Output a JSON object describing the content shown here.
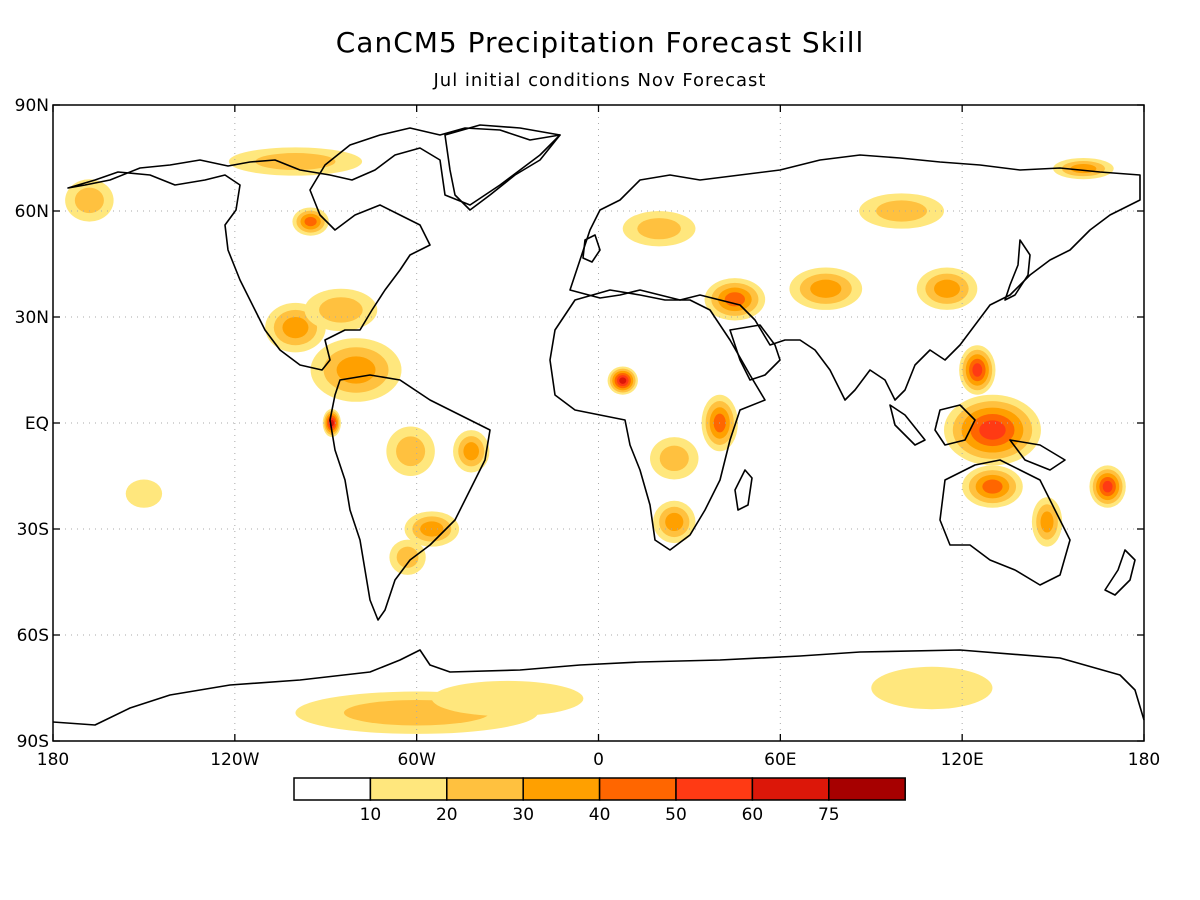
{
  "title": "CanCM5 Precipitation Forecast Skill",
  "subtitle": "Jul initial conditions   Nov Forecast",
  "map": {
    "projection": "equirectangular",
    "lon_range": [
      -180,
      180
    ],
    "lat_range": [
      -90,
      90
    ],
    "grid": "dotted",
    "lat_ticks": [
      {
        "value": 90,
        "label": "90N"
      },
      {
        "value": 60,
        "label": "60N"
      },
      {
        "value": 30,
        "label": "30N"
      },
      {
        "value": 0,
        "label": "EQ"
      },
      {
        "value": -30,
        "label": "30S"
      },
      {
        "value": -60,
        "label": "60S"
      },
      {
        "value": -90,
        "label": "90S"
      }
    ],
    "lon_ticks": [
      {
        "value": -180,
        "label": "180"
      },
      {
        "value": -120,
        "label": "120W"
      },
      {
        "value": -60,
        "label": "60W"
      },
      {
        "value": 0,
        "label": "0"
      },
      {
        "value": 60,
        "label": "60E"
      },
      {
        "value": 120,
        "label": "120E"
      },
      {
        "value": 180,
        "label": "180"
      }
    ],
    "skill_regions": [
      {
        "name": "caribbean-central-america",
        "lon": -80,
        "lat": 15,
        "rx": 15,
        "ry": 9,
        "level": 3
      },
      {
        "name": "mexico",
        "lon": -100,
        "lat": 27,
        "rx": 10,
        "ry": 7,
        "level": 3
      },
      {
        "name": "southeast-us",
        "lon": -85,
        "lat": 32,
        "rx": 12,
        "ry": 6,
        "level": 2
      },
      {
        "name": "hudson-bay-east",
        "lon": -95,
        "lat": 57,
        "rx": 6,
        "ry": 4,
        "level": 4
      },
      {
        "name": "alaska-west",
        "lon": -168,
        "lat": 63,
        "rx": 8,
        "ry": 6,
        "level": 2
      },
      {
        "name": "canadian-arctic",
        "lon": -100,
        "lat": 74,
        "rx": 22,
        "ry": 4,
        "level": 2
      },
      {
        "name": "eastern-pacific",
        "lon": -88,
        "lat": 0,
        "rx": 3,
        "ry": 4,
        "level": 6
      },
      {
        "name": "amazon",
        "lon": -62,
        "lat": -8,
        "rx": 8,
        "ry": 7,
        "level": 2
      },
      {
        "name": "northeast-brazil",
        "lon": -42,
        "lat": -8,
        "rx": 6,
        "ry": 6,
        "level": 3
      },
      {
        "name": "south-brazil",
        "lon": -55,
        "lat": -30,
        "rx": 9,
        "ry": 5,
        "level": 3
      },
      {
        "name": "argentina",
        "lon": -63,
        "lat": -38,
        "rx": 6,
        "ry": 5,
        "level": 2
      },
      {
        "name": "sahel",
        "lon": 8,
        "lat": 12,
        "rx": 5,
        "ry": 4,
        "level": 6
      },
      {
        "name": "east-africa",
        "lon": 40,
        "lat": 0,
        "rx": 6,
        "ry": 8,
        "level": 4
      },
      {
        "name": "central-africa",
        "lon": 25,
        "lat": -10,
        "rx": 8,
        "ry": 6,
        "level": 2
      },
      {
        "name": "southern-africa",
        "lon": 25,
        "lat": -28,
        "rx": 7,
        "ry": 6,
        "level": 3
      },
      {
        "name": "middle-east",
        "lon": 45,
        "lat": 35,
        "rx": 10,
        "ry": 6,
        "level": 4
      },
      {
        "name": "central-asia",
        "lon": 75,
        "lat": 38,
        "rx": 12,
        "ry": 6,
        "level": 3
      },
      {
        "name": "east-asia",
        "lon": 115,
        "lat": 38,
        "rx": 10,
        "ry": 6,
        "level": 3
      },
      {
        "name": "maritime-continent",
        "lon": 130,
        "lat": -2,
        "rx": 16,
        "ry": 10,
        "level": 5
      },
      {
        "name": "philippines",
        "lon": 125,
        "lat": 15,
        "rx": 6,
        "ry": 7,
        "level": 5
      },
      {
        "name": "north-australia",
        "lon": 130,
        "lat": -18,
        "rx": 10,
        "ry": 6,
        "level": 4
      },
      {
        "name": "east-australia",
        "lon": 148,
        "lat": -28,
        "rx": 5,
        "ry": 7,
        "level": 3
      },
      {
        "name": "coral-sea",
        "lon": 168,
        "lat": -18,
        "rx": 6,
        "ry": 6,
        "level": 5
      },
      {
        "name": "siberia",
        "lon": 100,
        "lat": 60,
        "rx": 14,
        "ry": 5,
        "level": 2
      },
      {
        "name": "europe",
        "lon": 20,
        "lat": 55,
        "rx": 12,
        "ry": 5,
        "level": 2
      },
      {
        "name": "arctic-siberia",
        "lon": 160,
        "lat": 72,
        "rx": 10,
        "ry": 3,
        "level": 3
      },
      {
        "name": "antarctic-atlantic",
        "lon": -60,
        "lat": -82,
        "rx": 40,
        "ry": 6,
        "level": 2
      },
      {
        "name": "antarctic-weddell",
        "lon": -30,
        "lat": -78,
        "rx": 25,
        "ry": 5,
        "level": 1
      },
      {
        "name": "antarctic-east",
        "lon": 110,
        "lat": -75,
        "rx": 20,
        "ry": 6,
        "level": 1
      },
      {
        "name": "southern-ocean-pacific",
        "lon": -150,
        "lat": -20,
        "rx": 6,
        "ry": 4,
        "level": 1
      }
    ]
  },
  "legend": {
    "colors": [
      "#ffffff",
      "#ffe77d",
      "#ffc13f",
      "#ffa000",
      "#ff6600",
      "#ff3a14",
      "#dc1709",
      "#a60000"
    ],
    "labels": [
      "10",
      "20",
      "30",
      "40",
      "50",
      "60",
      "75"
    ]
  }
}
